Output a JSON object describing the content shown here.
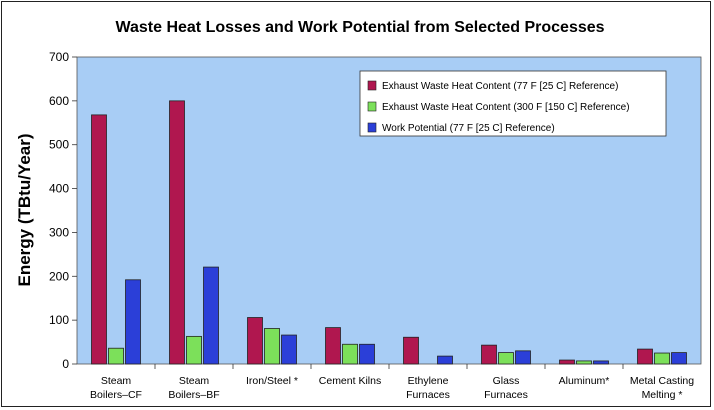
{
  "chart_data": {
    "type": "bar",
    "title": "Waste Heat Losses and Work Potential from Selected Processes",
    "ylabel": "Energy (TBtu/Year)",
    "xlabel": "",
    "ylim": [
      0,
      700
    ],
    "yticks": [
      0,
      100,
      200,
      300,
      400,
      500,
      600,
      700
    ],
    "grid": false,
    "legend_position": "top-right",
    "categories": [
      [
        "Steam",
        "Boilers–CF"
      ],
      [
        "Steam",
        "Boilers–BF"
      ],
      [
        "Iron/Steel *"
      ],
      [
        "Cement Kilns"
      ],
      [
        "Ethylene",
        "Furnaces"
      ],
      [
        "Glass",
        "Furnaces"
      ],
      [
        "Aluminum*"
      ],
      [
        "Metal Casting",
        "Melting *"
      ]
    ],
    "series": [
      {
        "name": "Exhaust Waste Heat Content (77 F [25 C] Reference)",
        "color": "#B0174F",
        "values": [
          568,
          600,
          106,
          83,
          61,
          43,
          9,
          34
        ]
      },
      {
        "name": "Exhaust Waste Heat Content (300 F [150 C] Reference)",
        "color": "#7CE05A",
        "values": [
          36,
          63,
          81,
          45,
          0,
          26,
          7,
          25
        ]
      },
      {
        "name": "Work Potential (77 F [25 C] Reference)",
        "color": "#2B3FD8",
        "values": [
          192,
          221,
          66,
          45,
          18,
          30,
          7,
          26
        ]
      }
    ],
    "plot_background": "#A8CDF5"
  }
}
